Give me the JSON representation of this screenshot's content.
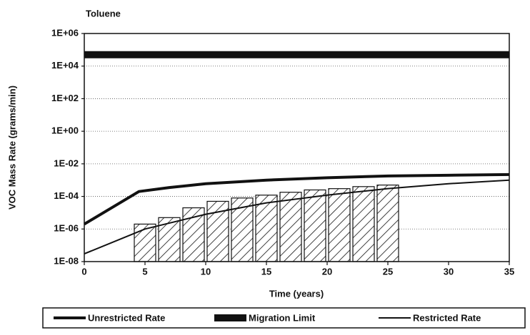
{
  "chart_data": {
    "type": "line",
    "title": "Toluene",
    "x_label": "Time (years)",
    "y_label": "VOC Mass Rate (grams/min)",
    "log_y": true,
    "grid": true,
    "legend": "bottom",
    "xlim": [
      0,
      35
    ],
    "xticks": [
      0,
      5,
      10,
      15,
      20,
      25,
      30,
      35
    ],
    "ylim": [
      1e-08,
      1000000
    ],
    "yticks": [
      {
        "value": 1e-08,
        "label": "1E-08"
      },
      {
        "value": 1e-06,
        "label": "1E-06"
      },
      {
        "value": 0.0001,
        "label": "1E-04"
      },
      {
        "value": 0.01,
        "label": "1E-02"
      },
      {
        "value": 1,
        "label": "1E+00"
      },
      {
        "value": 100,
        "label": "1E+02"
      },
      {
        "value": 10000,
        "label": "1E+04"
      },
      {
        "value": 1000000,
        "label": "1E+06"
      }
    ],
    "series": [
      {
        "name": "Unrestricted Rate",
        "color": "#111111",
        "x": [
          0,
          4.5,
          7,
          10,
          15,
          20,
          25,
          30,
          35
        ],
        "values": [
          2e-06,
          0.0002,
          0.00035,
          0.0006,
          0.001,
          0.0014,
          0.0018,
          0.002,
          0.0022
        ]
      },
      {
        "name": "Migration Limit",
        "color": "#111111",
        "x": [
          0,
          35
        ],
        "values": [
          50000,
          50000
        ]
      },
      {
        "name": "Restricted Rate",
        "color": "#111111",
        "x": [
          0,
          5,
          10,
          15,
          20,
          25,
          30,
          35
        ],
        "values": [
          3e-08,
          1e-06,
          8e-06,
          4e-05,
          0.00012,
          0.0003,
          0.0006,
          0.001
        ]
      }
    ],
    "bars": {
      "bins": [
        4,
        6,
        8,
        10,
        12,
        14,
        16,
        18,
        20,
        22,
        24,
        26
      ],
      "values": [
        2e-06,
        5e-06,
        2e-05,
        5e-05,
        8e-05,
        0.00012,
        0.00018,
        0.00025,
        0.0003,
        0.0004,
        0.0005
      ]
    }
  }
}
